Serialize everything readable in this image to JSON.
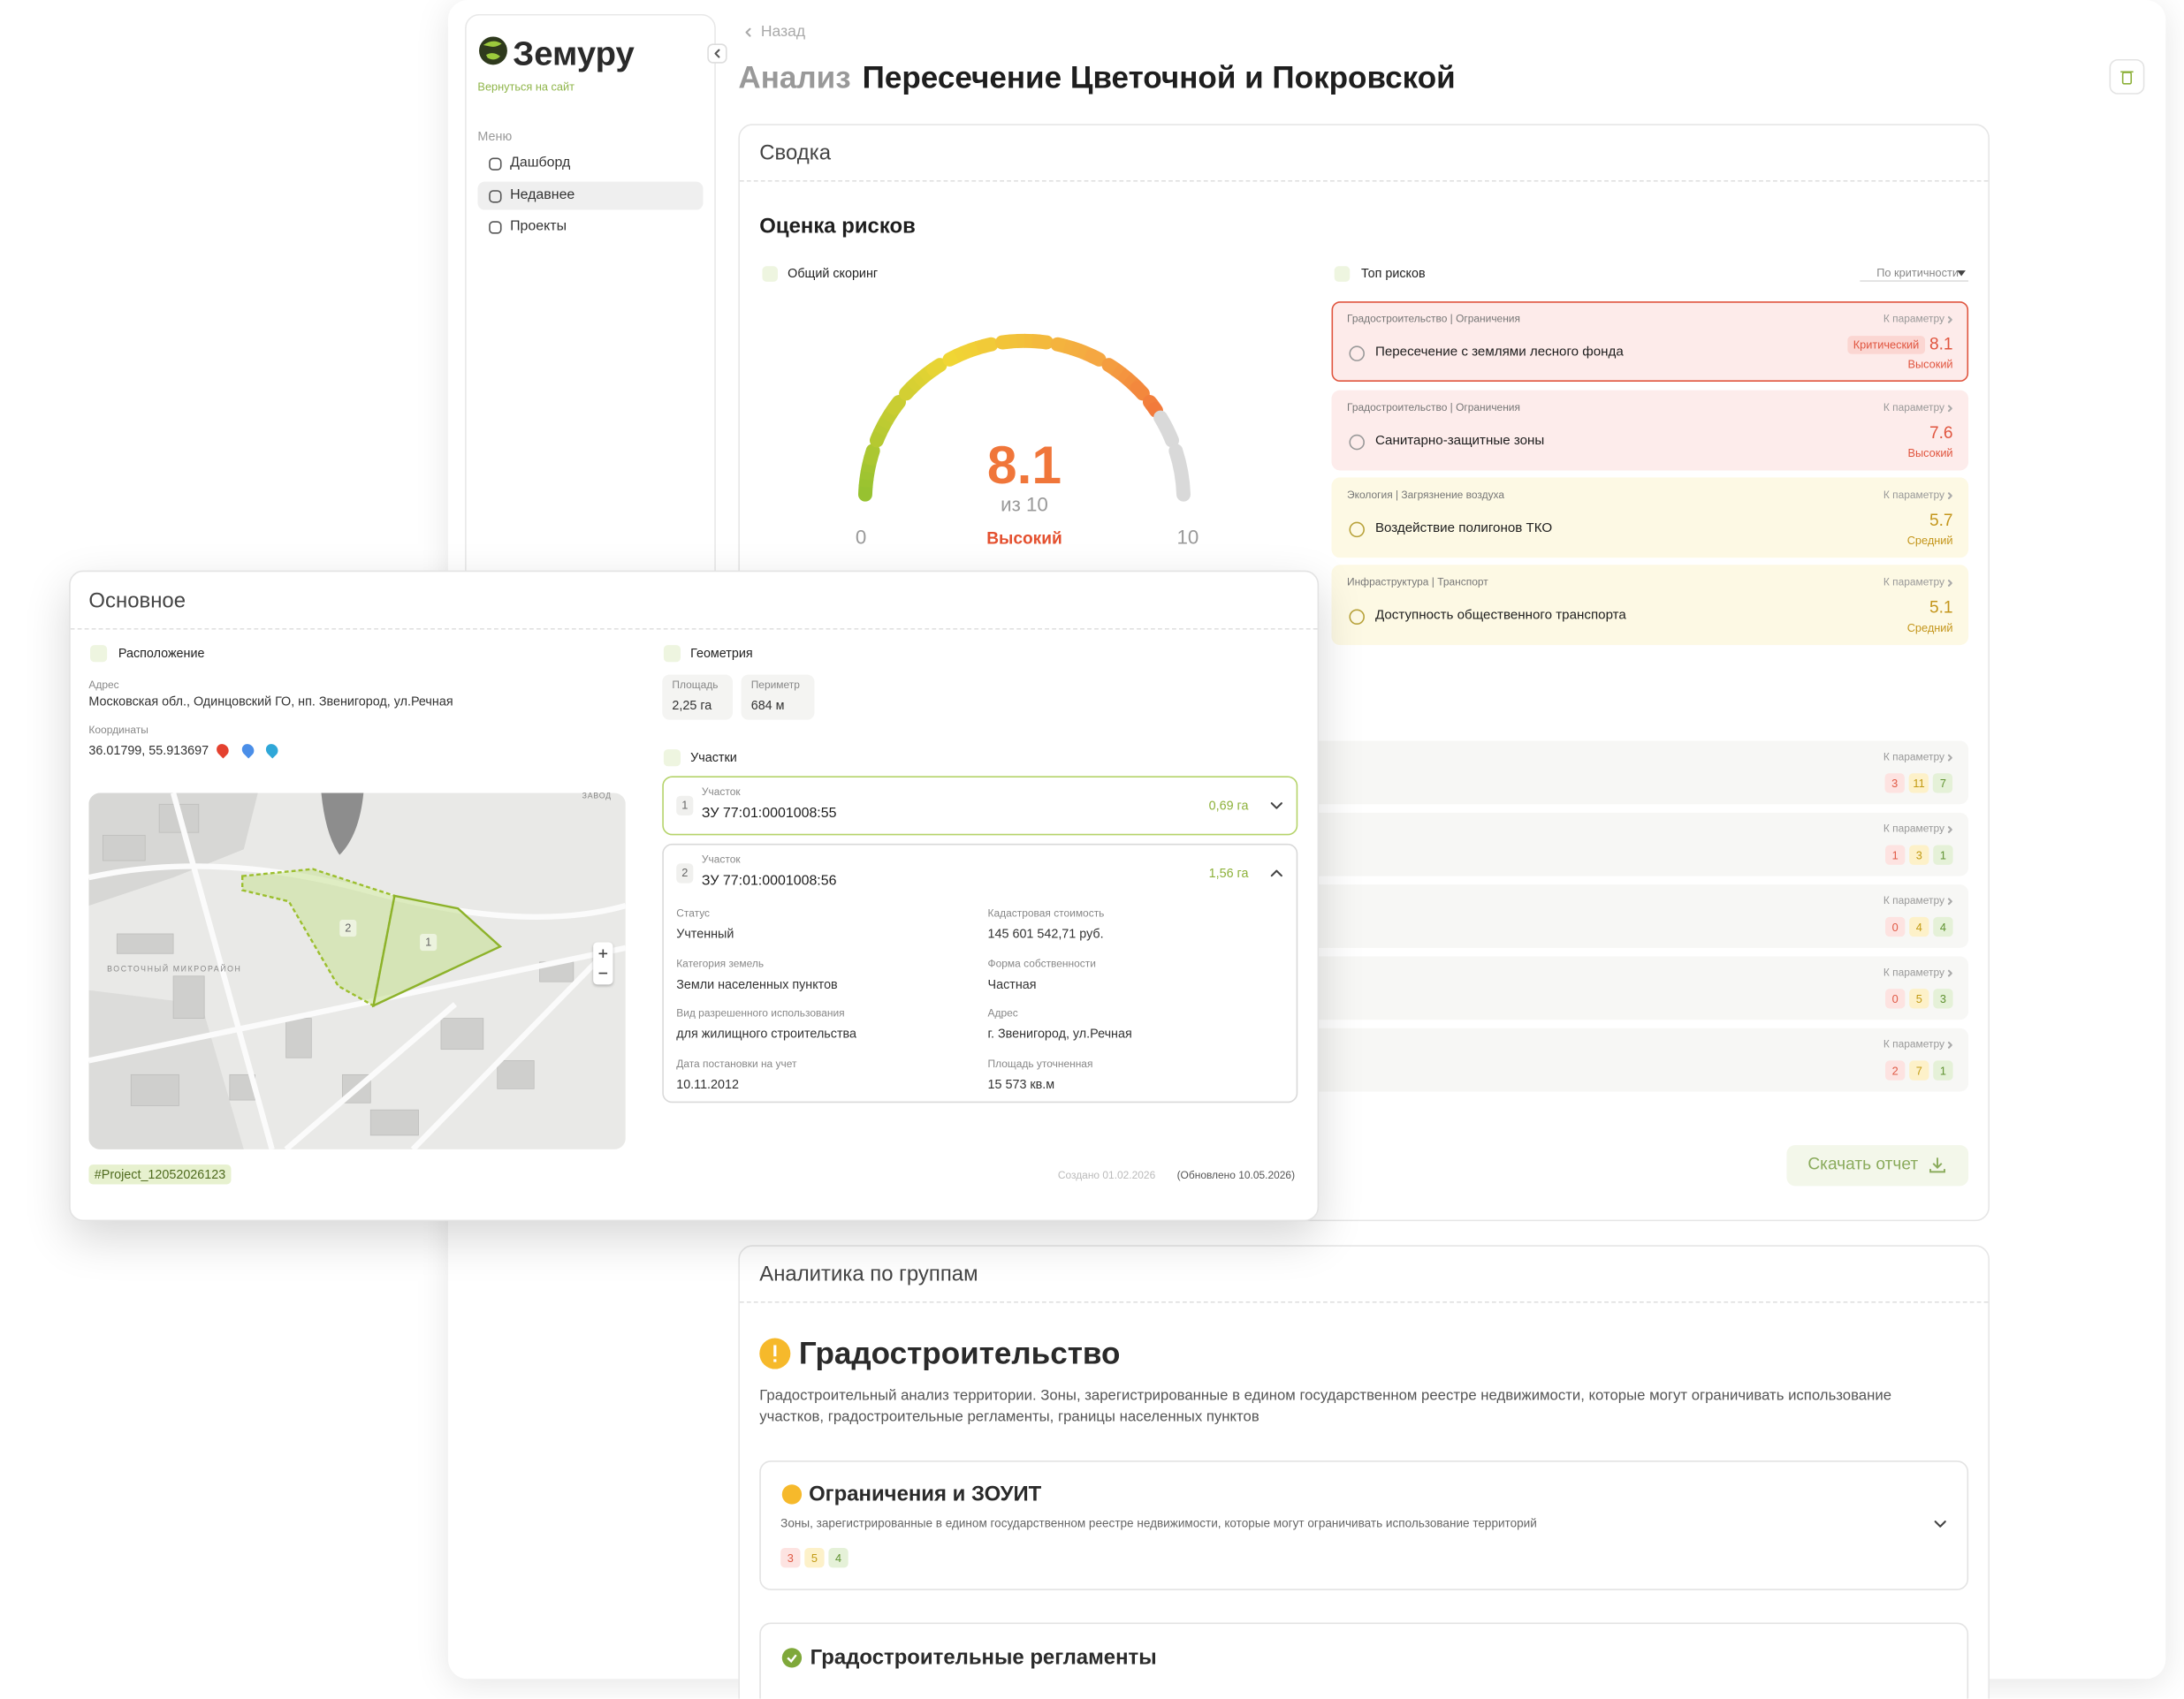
{
  "sidebar": {
    "logo": "Земуру",
    "back_to_site": "Вернуться на сайт",
    "menu_title": "Меню",
    "menu": [
      "Дашборд",
      "Недавнее",
      "Проекты"
    ]
  },
  "header": {
    "back": "Назад",
    "title_prefix": "Анализ",
    "title": "Пересечение Цветочной и Покровской"
  },
  "summary": {
    "title": "Сводка",
    "risk_title": "Оценка рисков",
    "scoring_title": "Общий скоринг",
    "score": {
      "value": 8.1,
      "out_of": "из 10",
      "level": "Высокий",
      "scale": [
        0,
        10
      ]
    },
    "link": "К параметру",
    "top_risks": {
      "title": "Топ рисков",
      "sort": "По критичности",
      "items": [
        {
          "category": "Градостроительство | Ограничения",
          "title": "Пересечение с землями лесного фонда",
          "badge": "Критический",
          "score": 8.1,
          "level": "Высокий",
          "color": "#e0553f",
          "background": "#fdebea"
        },
        {
          "category": "Градостроительство | Ограничения",
          "title": "Санитарно-защитные зоны",
          "score": 7.6,
          "level": "Высокий",
          "color": "#e0553f",
          "background": "#fdeceb"
        },
        {
          "category": "Экология | Загрязнение воздуха",
          "title": "Воздействие полигонов ТКО",
          "score": 5.7,
          "level": "Средний",
          "color": "#c4961c",
          "background": "#fdf9e4"
        },
        {
          "category": "Инфраструктура | Транспорт",
          "title": "Доступность общественного транспорта",
          "score": 5.1,
          "level": "Средний",
          "color": "#c4961c",
          "background": "#fdf9e4"
        }
      ]
    },
    "groups": [
      [
        3,
        11,
        7
      ],
      [
        1,
        3,
        1
      ],
      [
        0,
        4,
        4
      ],
      [
        0,
        5,
        3
      ],
      [
        2,
        7,
        1
      ]
    ],
    "download": "Скачать отчет"
  },
  "analytics": {
    "title": "Аналитика по группам",
    "group": {
      "title": "Градостроительство",
      "description": "Градостроительный анализ территории. Зоны, зарегистрированные в едином государственном реестре недвижимости, которые могут ограничивать использование участков, градостроительные регламенты, границы населенных пунктов",
      "subsections": [
        {
          "title": "Ограничения и ЗОУИТ",
          "description": "Зоны, зарегистрированные в едином государственном реестре недвижимости, которые могут ограничивать использование территорий",
          "counts": [
            3,
            5,
            4
          ]
        },
        {
          "title": "Градостроительные регламенты"
        }
      ]
    }
  },
  "main": {
    "title": "Основное",
    "location": {
      "title": "Расположение",
      "address_label": "Адрес",
      "address": "Московская обл., Одинцовский ГО, нп. Звенигород, ул.Речная",
      "coords_label": "Координаты",
      "coords": "36.01799, 55.913697"
    },
    "map": {
      "labels": [
        "ВОСТОЧНЫЙ МИКРОРАЙОН",
        "ЗАВОД"
      ]
    },
    "tag": "#Project_12052026123",
    "geometry": {
      "title": "Геометрия",
      "metrics": [
        {
          "label": "Площадь",
          "value": "2,25 га"
        },
        {
          "label": "Периметр",
          "value": "684 м"
        }
      ]
    },
    "plots": {
      "title": "Участки",
      "label": "Участок",
      "items": [
        {
          "number": 1,
          "id": "ЗУ 77:01:0001008:55",
          "area": "0,69 га"
        },
        {
          "number": 2,
          "id": "ЗУ 77:01:0001008:56",
          "area": "1,56 га",
          "details": [
            {
              "label": "Статус",
              "value": "Учтенный"
            },
            {
              "label": "Кадастровая стоимость",
              "value": "145 601 542,71 руб."
            },
            {
              "label": "Категория земель",
              "value": "Земли населенных пунктов"
            },
            {
              "label": "Форма собственности",
              "value": "Частная"
            },
            {
              "label": "Вид разрешенного использования",
              "value": "для жилищного строительства"
            },
            {
              "label": "Адрес",
              "value": "г. Звенигород, ул.Речная"
            },
            {
              "label": "Дата постановки на учет",
              "value": "10.11.2012"
            },
            {
              "label": "Площадь уточненная",
              "value": "15 573 кв.м"
            }
          ]
        }
      ]
    },
    "created": "Создано 01.02.2026",
    "updated": "(Обновлено 10.05.2026)"
  }
}
